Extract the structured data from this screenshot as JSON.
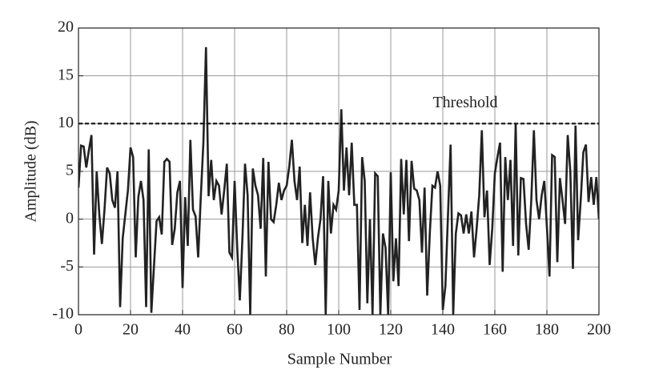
{
  "chart_data": {
    "type": "line",
    "xlabel": "Sample Number",
    "ylabel": "Amplitude (dB)",
    "xlim": [
      0,
      200
    ],
    "ylim": [
      -10,
      20
    ],
    "xticks": [
      0,
      20,
      40,
      60,
      80,
      100,
      120,
      140,
      160,
      180,
      200
    ],
    "yticks": [
      -10,
      -5,
      0,
      5,
      10,
      15,
      20
    ],
    "grid": true,
    "color": "#222222",
    "threshold": {
      "value": 10,
      "label": "Threshold"
    },
    "x": [
      0,
      1,
      2,
      3,
      4,
      5,
      6,
      7,
      8,
      9,
      10,
      11,
      12,
      13,
      14,
      15,
      16,
      17,
      18,
      19,
      20,
      21,
      22,
      23,
      24,
      25,
      26,
      27,
      28,
      29,
      30,
      31,
      32,
      33,
      34,
      35,
      36,
      37,
      38,
      39,
      40,
      41,
      42,
      43,
      44,
      45,
      46,
      47,
      48,
      49,
      50,
      51,
      52,
      53,
      54,
      55,
      56,
      57,
      58,
      59,
      60,
      61,
      62,
      63,
      64,
      65,
      66,
      67,
      68,
      69,
      70,
      71,
      72,
      73,
      74,
      75,
      76,
      77,
      78,
      79,
      80,
      81,
      82,
      83,
      84,
      85,
      86,
      87,
      88,
      89,
      90,
      91,
      92,
      93,
      94,
      95,
      96,
      97,
      98,
      99,
      100,
      101,
      102,
      103,
      104,
      105,
      106,
      107,
      108,
      109,
      110,
      111,
      112,
      113,
      114,
      115,
      116,
      117,
      118,
      119,
      120,
      121,
      122,
      123,
      124,
      125,
      126,
      127,
      128,
      129,
      130,
      131,
      132,
      133,
      134,
      135,
      136,
      137,
      138,
      139,
      140,
      141,
      142,
      143,
      144,
      145,
      146,
      147,
      148,
      149,
      150,
      151,
      152,
      153,
      154,
      155,
      156,
      157,
      158,
      159,
      160,
      161,
      162,
      163,
      164,
      165,
      166,
      167,
      168,
      169,
      170,
      171,
      172,
      173,
      174,
      175,
      176,
      177,
      178,
      179,
      180,
      181,
      182,
      183,
      184,
      185,
      186,
      187,
      188,
      189,
      190,
      191,
      192,
      193,
      194,
      195,
      196,
      197,
      198,
      199,
      200
    ],
    "values": [
      3.3,
      7.7,
      7.6,
      5.4,
      7.2,
      8.8,
      -3.7,
      5,
      0.5,
      -2.6,
      1,
      5.4,
      4.8,
      2,
      1.2,
      5,
      -9.2,
      -2,
      0.5,
      3,
      7.5,
      6.5,
      -4,
      2.3,
      4,
      2,
      -9.2,
      7.3,
      -9.8,
      -5,
      -0.2,
      0.2,
      -1.6,
      6,
      6.3,
      6,
      -2.7,
      -1,
      2.8,
      4,
      -7.2,
      2.3,
      -2.8,
      8.3,
      1,
      0.3,
      -4,
      2.3,
      8,
      18,
      2.4,
      6.2,
      2,
      4,
      3.5,
      0.5,
      3,
      5.8,
      -3.5,
      -4,
      4,
      -3,
      -8.5,
      -2,
      5.8,
      2.5,
      -10,
      5.3,
      3.5,
      2.5,
      -1,
      6.4,
      -6,
      6,
      0,
      -0.3,
      1.5,
      3.8,
      2,
      3,
      3.5,
      5.5,
      8.3,
      4,
      2,
      5.5,
      -2.5,
      1.5,
      -2.8,
      2.8,
      -2,
      -4.8,
      -2,
      0,
      4.5,
      -10,
      4,
      -1.5,
      1.5,
      1,
      3,
      11.5,
      3,
      7.5,
      2.5,
      8,
      1.5,
      1.5,
      -9.5,
      6.5,
      4,
      -8.8,
      0,
      -10,
      4.8,
      4.5,
      -10,
      -1.5,
      -3,
      -10,
      4.9,
      -6.5,
      -2,
      -7,
      6.3,
      0.5,
      6.2,
      -2.3,
      6.1,
      3.2,
      3,
      2,
      -3.5,
      3.3,
      -8,
      -1.5,
      3.5,
      3.3,
      5,
      3.5,
      -9.5,
      -7,
      0.5,
      7.8,
      -10,
      -1.5,
      0.6,
      0.4,
      -1.5,
      0.5,
      -1.5,
      0.8,
      -4,
      -1,
      2.5,
      9.3,
      0.2,
      3,
      -4.8,
      -1,
      4.8,
      6.5,
      8,
      -5.5,
      6.5,
      2,
      6.2,
      -2.8,
      10,
      -3.8,
      4.3,
      4.2,
      -0.5,
      -3.2,
      2,
      9.3,
      2,
      0,
      2.5,
      4,
      -0.8,
      -6,
      6.7,
      6.5,
      -4.5,
      4.3,
      2,
      -0.5,
      8.8,
      5,
      -5.2,
      9.8,
      -2.2,
      2,
      7,
      7.8,
      1.8,
      4.4,
      1.5,
      4.4,
      0
    ]
  }
}
